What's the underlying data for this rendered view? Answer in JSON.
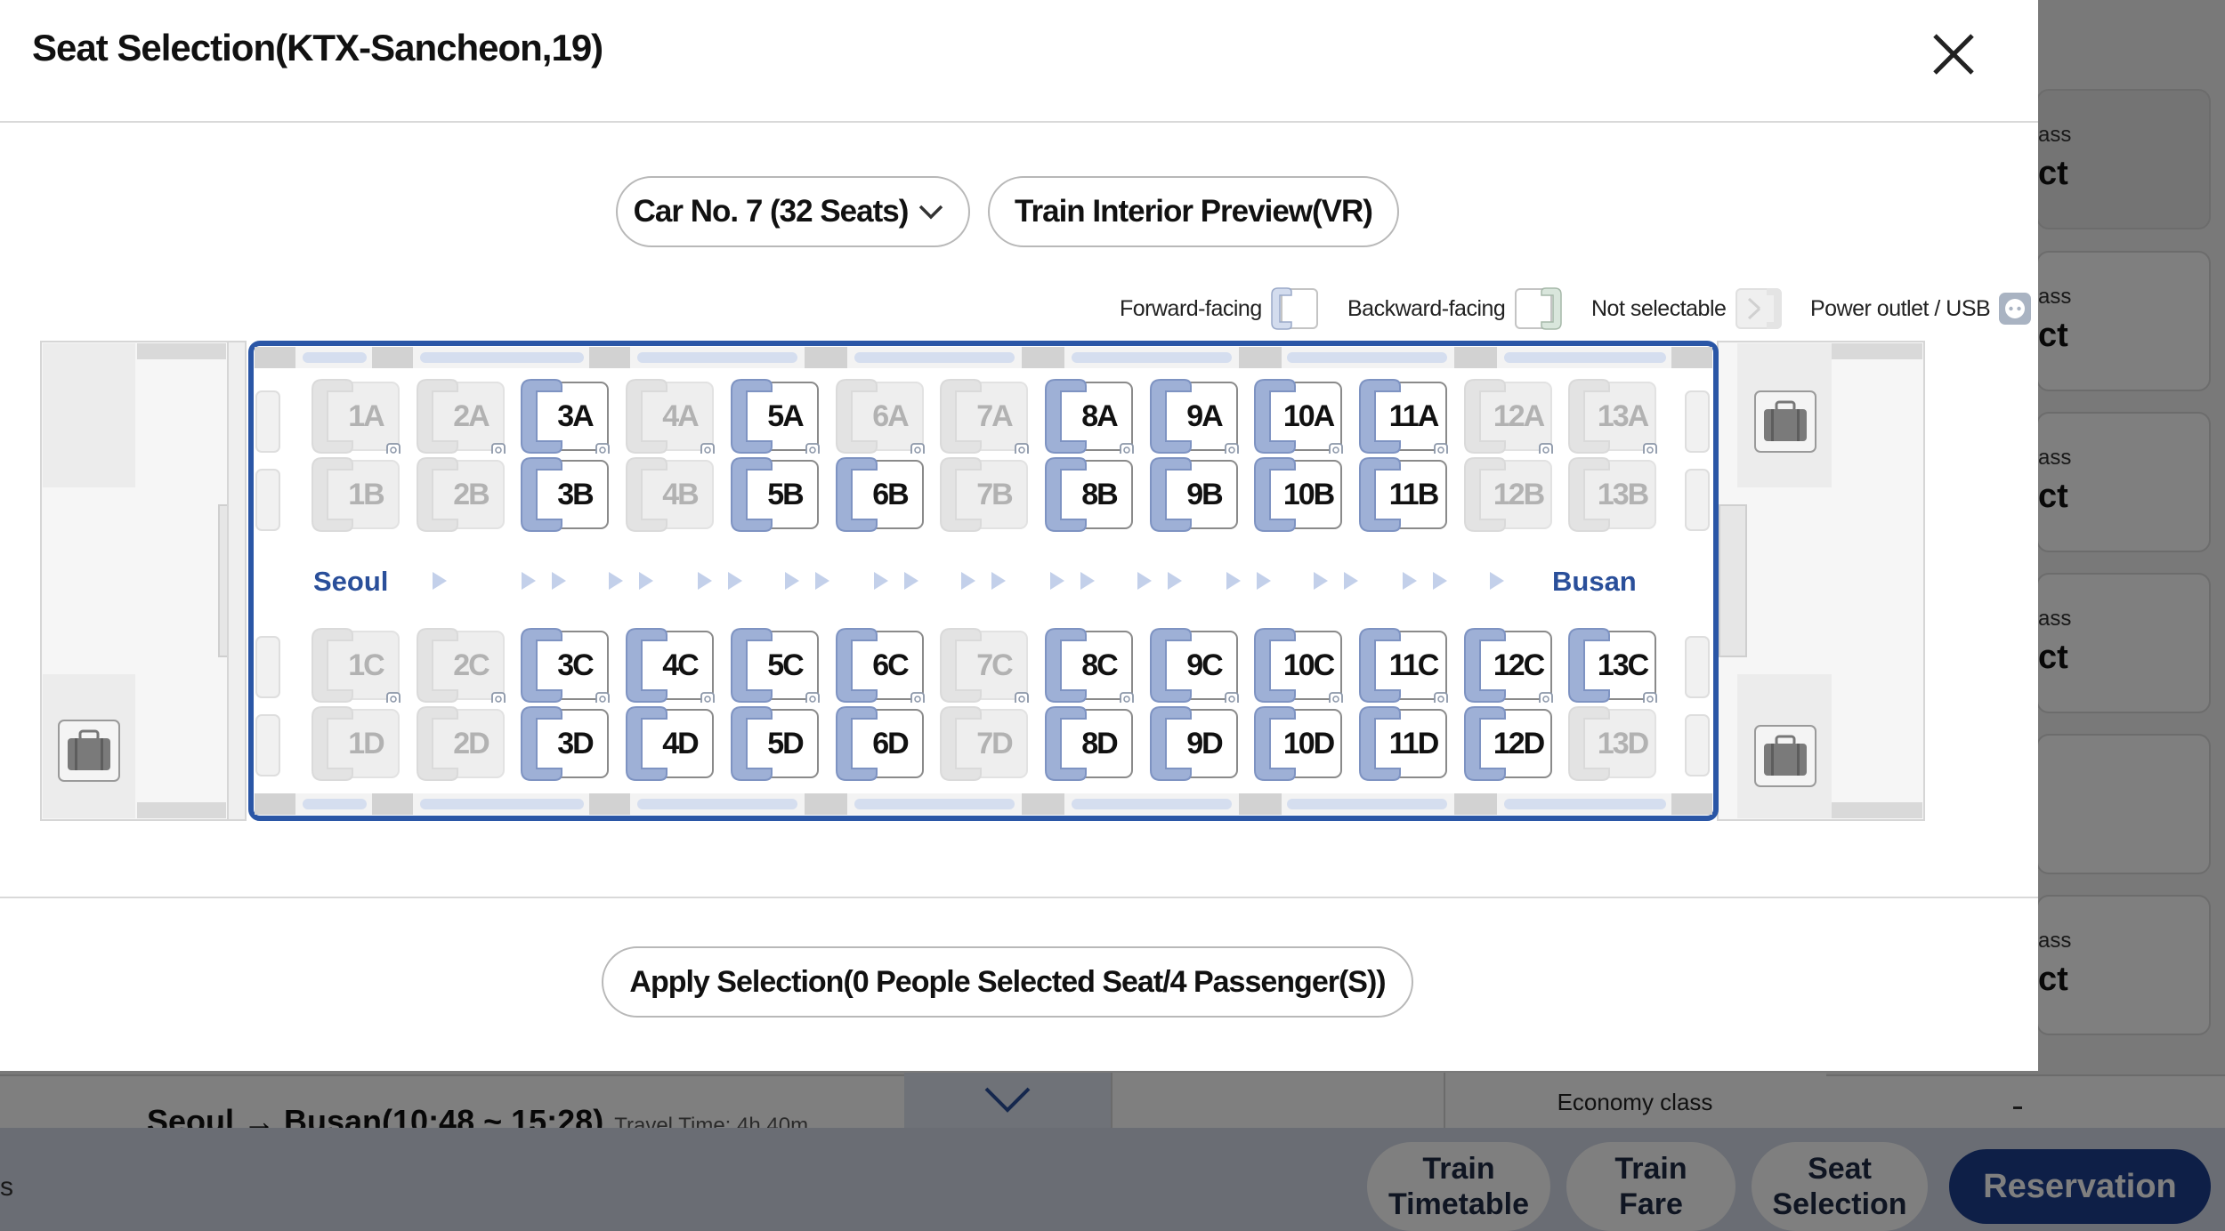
{
  "modal": {
    "title": "Seat Selection(KTX-Sancheon,19)",
    "close_icon": "close-icon",
    "car_select": {
      "value": "Car No. 7 (32 Seats)",
      "icon": "chevron-down-icon"
    },
    "vr_button_label": "Train Interior Preview(VR)",
    "legend": [
      {
        "label": "Forward-facing",
        "icon": "forward-facing-seat-icon"
      },
      {
        "label": "Backward-facing",
        "icon": "backward-facing-seat-icon"
      },
      {
        "label": "Not selectable",
        "icon": "not-selectable-seat-icon"
      },
      {
        "label": "Power outlet / USB",
        "icon": "power-outlet-icon"
      }
    ],
    "route": {
      "from": "Seoul",
      "to": "Busan"
    },
    "seats": {
      "A": [
        {
          "label": "1A",
          "available": false
        },
        {
          "label": "2A",
          "available": false
        },
        {
          "label": "3A",
          "available": true
        },
        {
          "label": "4A",
          "available": false
        },
        {
          "label": "5A",
          "available": true
        },
        {
          "label": "6A",
          "available": false
        },
        {
          "label": "7A",
          "available": false
        },
        {
          "label": "8A",
          "available": true
        },
        {
          "label": "9A",
          "available": true
        },
        {
          "label": "10A",
          "available": true
        },
        {
          "label": "11A",
          "available": true
        },
        {
          "label": "12A",
          "available": false
        },
        {
          "label": "13A",
          "available": false
        }
      ],
      "B": [
        {
          "label": "1B",
          "available": false
        },
        {
          "label": "2B",
          "available": false
        },
        {
          "label": "3B",
          "available": true
        },
        {
          "label": "4B",
          "available": false
        },
        {
          "label": "5B",
          "available": true
        },
        {
          "label": "6B",
          "available": true
        },
        {
          "label": "7B",
          "available": false
        },
        {
          "label": "8B",
          "available": true
        },
        {
          "label": "9B",
          "available": true
        },
        {
          "label": "10B",
          "available": true
        },
        {
          "label": "11B",
          "available": true
        },
        {
          "label": "12B",
          "available": false
        },
        {
          "label": "13B",
          "available": false
        }
      ],
      "C": [
        {
          "label": "1C",
          "available": false
        },
        {
          "label": "2C",
          "available": false
        },
        {
          "label": "3C",
          "available": true
        },
        {
          "label": "4C",
          "available": true
        },
        {
          "label": "5C",
          "available": true
        },
        {
          "label": "6C",
          "available": true
        },
        {
          "label": "7C",
          "available": false
        },
        {
          "label": "8C",
          "available": true
        },
        {
          "label": "9C",
          "available": true
        },
        {
          "label": "10C",
          "available": true
        },
        {
          "label": "11C",
          "available": true
        },
        {
          "label": "12C",
          "available": true
        },
        {
          "label": "13C",
          "available": true
        }
      ],
      "D": [
        {
          "label": "1D",
          "available": false
        },
        {
          "label": "2D",
          "available": false
        },
        {
          "label": "3D",
          "available": true
        },
        {
          "label": "4D",
          "available": true
        },
        {
          "label": "5D",
          "available": true
        },
        {
          "label": "6D",
          "available": true
        },
        {
          "label": "7D",
          "available": false
        },
        {
          "label": "8D",
          "available": true
        },
        {
          "label": "9D",
          "available": true
        },
        {
          "label": "10D",
          "available": true
        },
        {
          "label": "11D",
          "available": true
        },
        {
          "label": "12D",
          "available": true
        },
        {
          "label": "13D",
          "available": false
        }
      ]
    },
    "luggage_icon": "luggage-icon",
    "apply_button_label": "Apply Selection(0 People Selected Seat/4 Passenger(S))"
  },
  "background": {
    "class_cards": [
      {
        "class_label": "ass",
        "select_label": "ct"
      },
      {
        "class_label": "ass",
        "select_label": "ct"
      },
      {
        "class_label": "ass",
        "select_label": "ct"
      },
      {
        "class_label": "ass",
        "select_label": "ct"
      },
      {
        "class_label": "",
        "select_label": ""
      },
      {
        "class_label": "ass",
        "select_label": "ct"
      }
    ],
    "route_text": "Seoul → Busan(10:48 ~ 15:28)",
    "travel_time": "Travel Time: 4h 40m",
    "economy_label": "Economy class",
    "edge_text": "s",
    "bottom_bar": {
      "timetable": [
        "Train",
        "Timetable"
      ],
      "fare": [
        "Train",
        "Fare"
      ],
      "seat_selection": [
        "Seat",
        "Selection"
      ],
      "reservation": "Reservation"
    }
  },
  "colors": {
    "seat_available": "#9eb0d6",
    "seat_unavailable": "#e3e3e3",
    "car_outline": "#2a56a6",
    "route_text": "#2a4f9a",
    "reservation_button": "#1d3f8e"
  }
}
